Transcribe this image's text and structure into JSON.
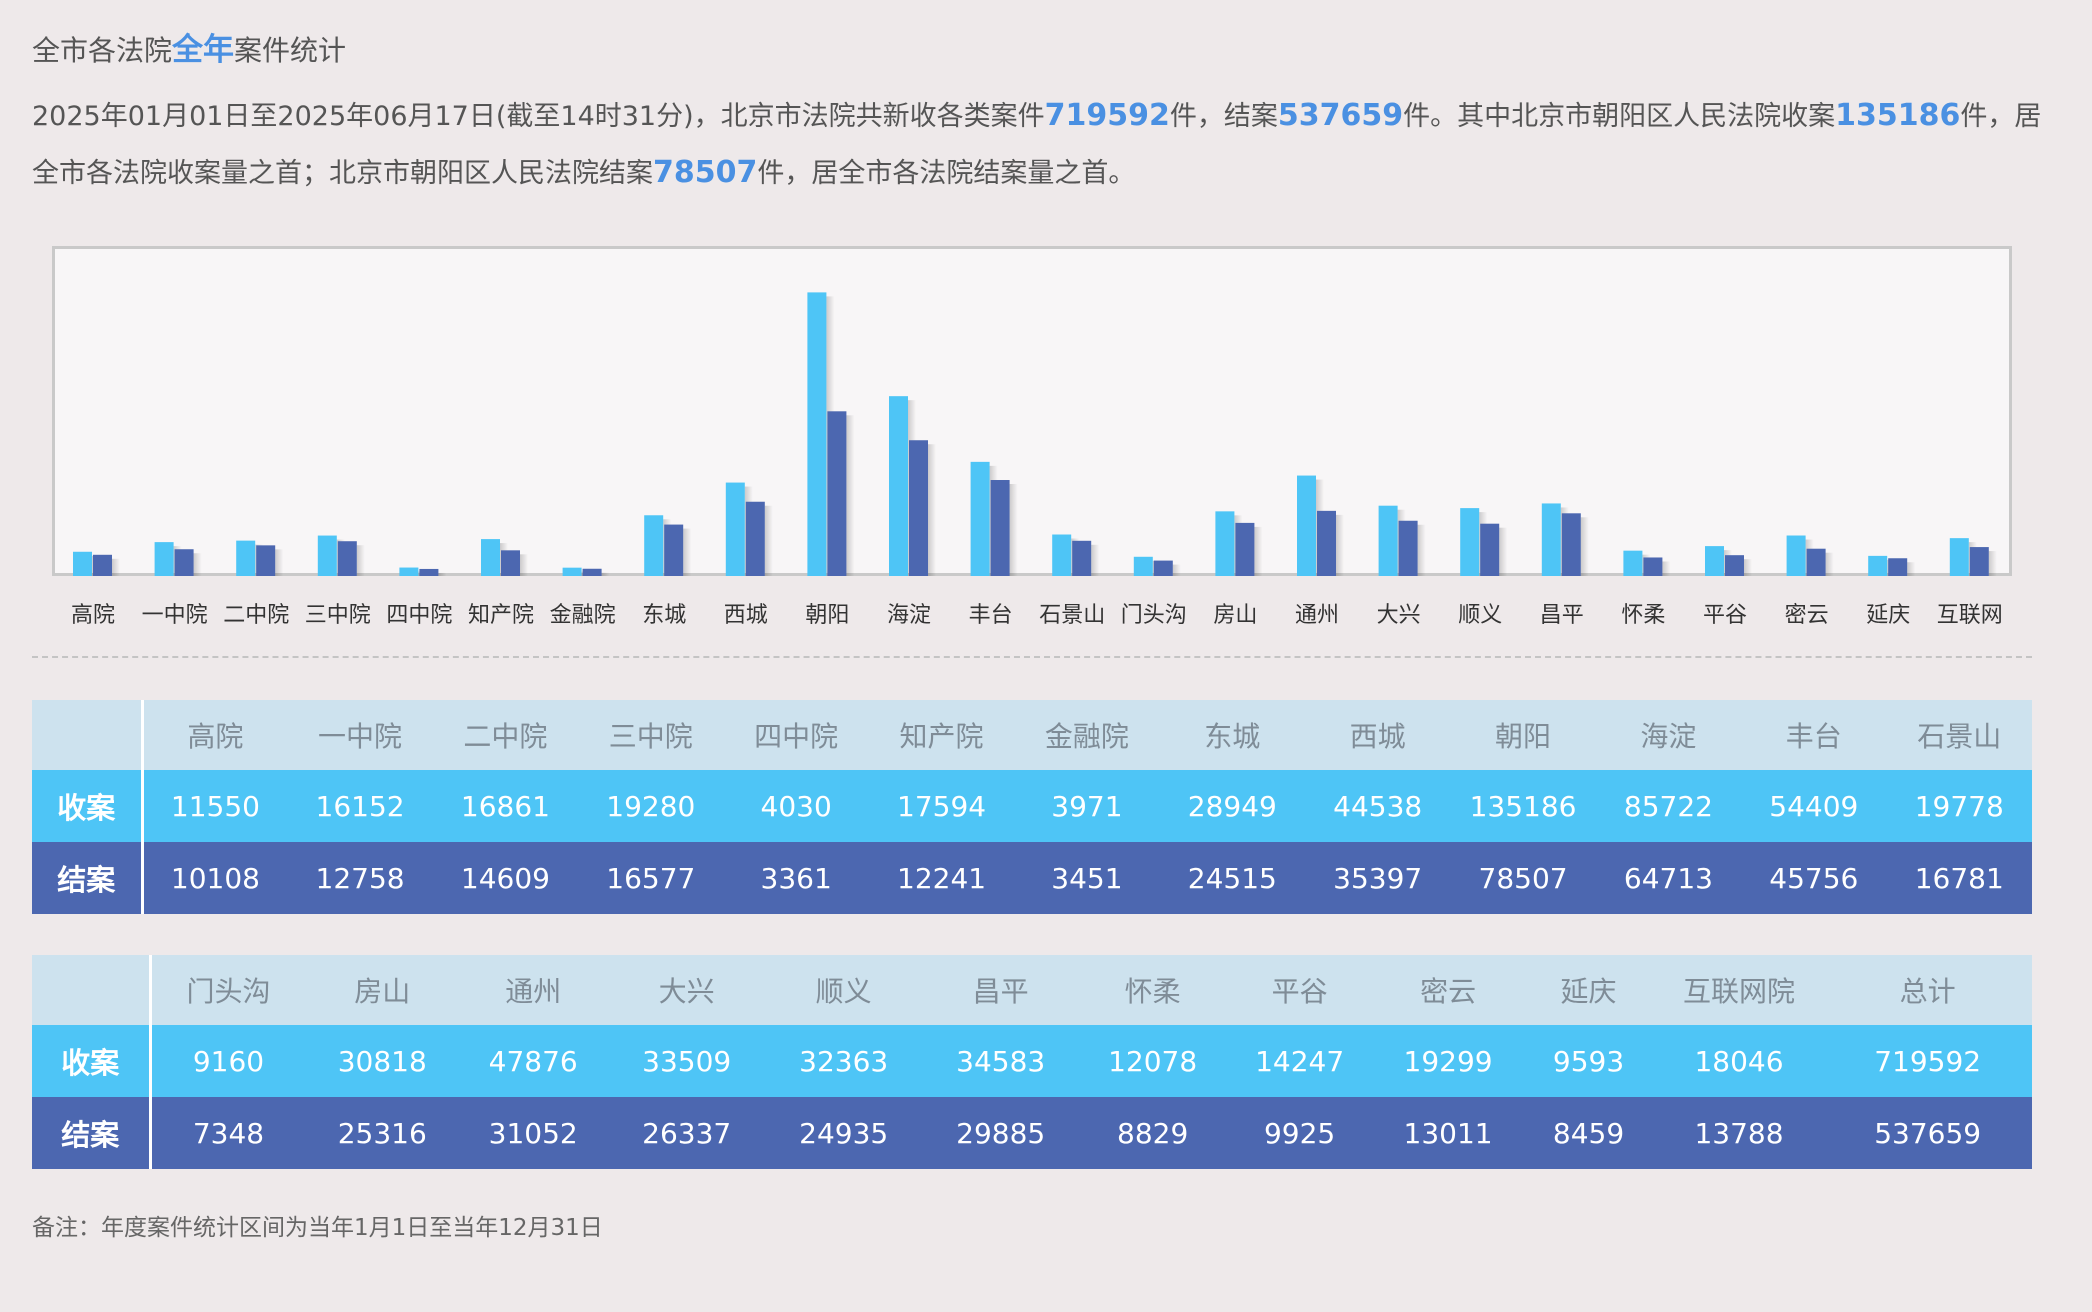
{
  "header": {
    "title_prefix": "全市各法院",
    "title_highlight": "全年",
    "title_suffix": "案件统计"
  },
  "summary": {
    "p1": "2025年01月01日至2025年06月17日(截至14时31分)，北京市法院共新收各类案件",
    "n1": "719592",
    "p2": "件，结案",
    "n2": "537659",
    "p3": "件。其中北京市朝阳区人民法院收案",
    "n3": "135186",
    "p4": "件，居全市各法院收案量之首；北京市朝阳区人民法院结案",
    "n4": "78507",
    "p5": "件，居全市各法院结案量之首。"
  },
  "colors": {
    "received": "#4ec5f6",
    "closed": "#4c67b0",
    "highlight": "#4a90e2",
    "header_row": "#cde2ee"
  },
  "chart_data": {
    "type": "bar",
    "categories": [
      "高院",
      "一中院",
      "二中院",
      "三中院",
      "四中院",
      "知产院",
      "金融院",
      "东城",
      "西城",
      "朝阳",
      "海淀",
      "丰台",
      "石景山",
      "门头沟",
      "房山",
      "通州",
      "大兴",
      "顺义",
      "昌平",
      "怀柔",
      "平谷",
      "密云",
      "延庆",
      "互联网"
    ],
    "series": [
      {
        "values": [
          11550,
          16152,
          16861,
          19280,
          4030,
          17594,
          3971,
          28949,
          44538,
          135186,
          85722,
          54409,
          19778,
          9160,
          30818,
          47876,
          33509,
          32363,
          34583,
          12078,
          14247,
          19299,
          9593,
          18046
        ]
      },
      {
        "values": [
          10108,
          12758,
          14609,
          16577,
          3361,
          12241,
          3451,
          24515,
          35397,
          78507,
          64713,
          45756,
          16781,
          7348,
          25316,
          31052,
          26337,
          24935,
          29885,
          8829,
          9925,
          13011,
          8459,
          13788
        ]
      }
    ],
    "ylim": [
      0,
      140000
    ],
    "grid": false,
    "legend": "none"
  },
  "table1": {
    "corner": "",
    "headers": [
      "高院",
      "一中院",
      "二中院",
      "三中院",
      "四中院",
      "知产院",
      "金融院",
      "东城",
      "西城",
      "朝阳",
      "海淀",
      "丰台",
      "石景山"
    ],
    "received_label": "收案",
    "received": [
      "11550",
      "16152",
      "16861",
      "19280",
      "4030",
      "17594",
      "3971",
      "28949",
      "44538",
      "135186",
      "85722",
      "54409",
      "19778"
    ],
    "closed_label": "结案",
    "closed": [
      "10108",
      "12758",
      "14609",
      "16577",
      "3361",
      "12241",
      "3451",
      "24515",
      "35397",
      "78507",
      "64713",
      "45756",
      "16781"
    ]
  },
  "table2": {
    "corner": "",
    "headers": [
      "门头沟",
      "房山",
      "通州",
      "大兴",
      "顺义",
      "昌平",
      "怀柔",
      "平谷",
      "密云",
      "延庆",
      "互联网院",
      "总计"
    ],
    "received_label": "收案",
    "received": [
      "9160",
      "30818",
      "47876",
      "33509",
      "32363",
      "34583",
      "12078",
      "14247",
      "19299",
      "9593",
      "18046",
      "719592"
    ],
    "closed_label": "结案",
    "closed": [
      "7348",
      "25316",
      "31052",
      "26337",
      "24935",
      "29885",
      "8829",
      "9925",
      "13011",
      "8459",
      "13788",
      "537659"
    ]
  },
  "note": "备注：年度案件统计区间为当年1月1日至当年12月31日"
}
